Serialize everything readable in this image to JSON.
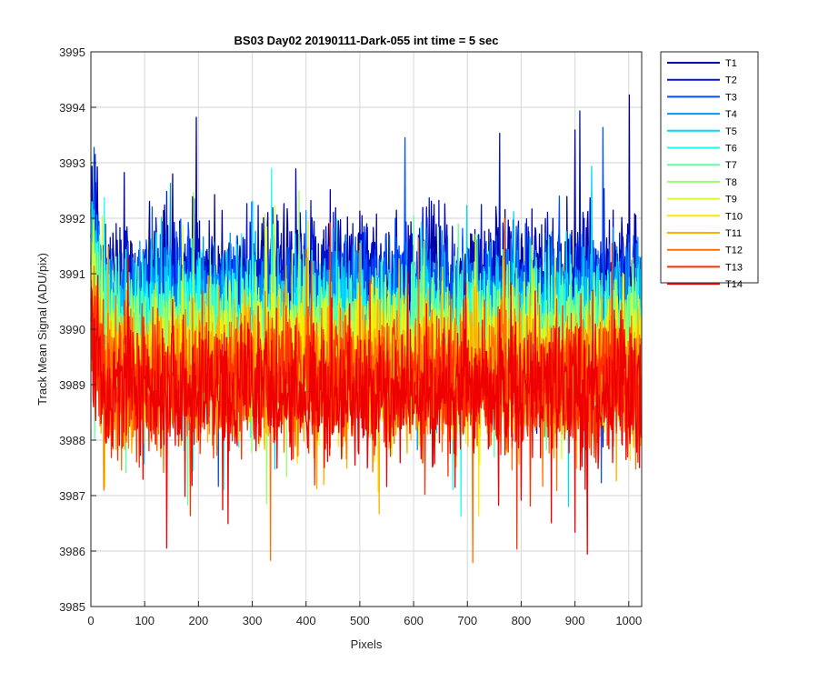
{
  "chart_data": {
    "type": "line",
    "title": "BS03 Day02 20190111-Dark-055 int time = 5 sec",
    "xlabel": "Pixels",
    "ylabel": "Track Mean Signal (ADU/pix)",
    "xlim": [
      0,
      1024
    ],
    "ylim": [
      3985,
      3995
    ],
    "xticks": [
      0,
      100,
      200,
      300,
      400,
      500,
      600,
      700,
      800,
      900,
      1000
    ],
    "yticks": [
      3985,
      3986,
      3987,
      3988,
      3989,
      3990,
      3991,
      3992,
      3993,
      3994,
      3995
    ],
    "grid": true,
    "legend_position": "outside-right",
    "num_points": 1024,
    "series": [
      {
        "name": "T1",
        "color": "#0000a8",
        "mean": 3990.9,
        "spread": 0.85
      },
      {
        "name": "T2",
        "color": "#0014d4",
        "mean": 3990.7,
        "spread": 0.85
      },
      {
        "name": "T3",
        "color": "#0050ff",
        "mean": 3990.5,
        "spread": 0.85
      },
      {
        "name": "T4",
        "color": "#0094ff",
        "mean": 3990.3,
        "spread": 0.85
      },
      {
        "name": "T5",
        "color": "#00d8ff",
        "mean": 3990.1,
        "spread": 0.85
      },
      {
        "name": "T6",
        "color": "#1cfff0",
        "mean": 3989.95,
        "spread": 0.85
      },
      {
        "name": "T7",
        "color": "#5cffa8",
        "mean": 3989.8,
        "spread": 0.85
      },
      {
        "name": "T8",
        "color": "#98ff68",
        "mean": 3989.65,
        "spread": 0.85
      },
      {
        "name": "T9",
        "color": "#d4ff2c",
        "mean": 3989.5,
        "spread": 0.85
      },
      {
        "name": "T10",
        "color": "#ffe800",
        "mean": 3989.35,
        "spread": 0.85
      },
      {
        "name": "T11",
        "color": "#ffb000",
        "mean": 3989.2,
        "spread": 0.85
      },
      {
        "name": "T12",
        "color": "#ff7000",
        "mean": 3989.1,
        "spread": 0.85
      },
      {
        "name": "T13",
        "color": "#ff3000",
        "mean": 3989.0,
        "spread": 0.85
      },
      {
        "name": "T14",
        "color": "#ee0000",
        "mean": 3988.9,
        "spread": 0.85
      }
    ]
  }
}
